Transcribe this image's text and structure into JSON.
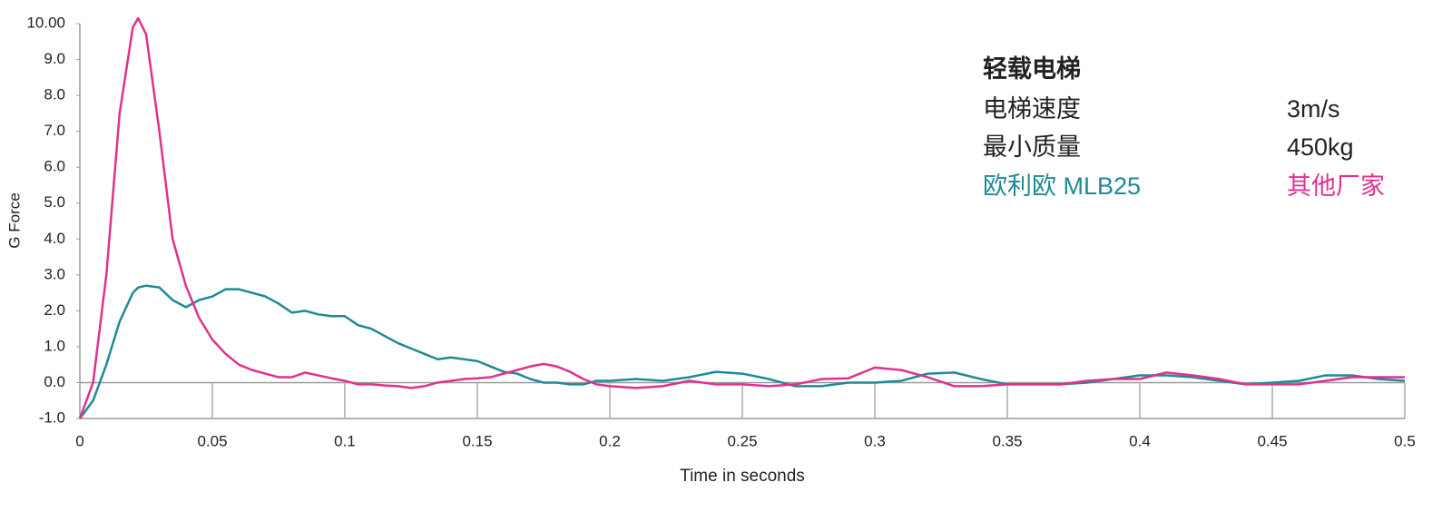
{
  "chart_data": {
    "type": "line",
    "xlabel": "Time in seconds",
    "ylabel": "G Force",
    "xlim": [
      0,
      0.5
    ],
    "xticks": [
      0,
      0.05,
      0.1,
      0.15,
      0.2,
      0.25,
      0.3,
      0.35,
      0.4,
      0.45,
      0.5
    ],
    "ylim": [
      -1,
      10
    ],
    "yticks": [
      {
        "value": -1,
        "label": "-1.0"
      },
      {
        "value": 0,
        "label": "0.0"
      },
      {
        "value": 1,
        "label": "1.0"
      },
      {
        "value": 2,
        "label": "2.0"
      },
      {
        "value": 3,
        "label": "3.0"
      },
      {
        "value": 4,
        "label": "4.0"
      },
      {
        "value": 5,
        "label": "5.0"
      },
      {
        "value": 6,
        "label": "6.0"
      },
      {
        "value": 7,
        "label": "7.0"
      },
      {
        "value": 8,
        "label": "8.0"
      },
      {
        "value": 9,
        "label": "9.0"
      },
      {
        "value": 10,
        "label": "10.00"
      }
    ],
    "annotations": {
      "title": "轻载电梯",
      "rows": [
        [
          "电梯速度",
          "3m/s"
        ],
        [
          "最小质量",
          "450kg"
        ]
      ]
    },
    "x": [
      0,
      0.005,
      0.01,
      0.015,
      0.02,
      0.022,
      0.025,
      0.03,
      0.035,
      0.04,
      0.045,
      0.05,
      0.055,
      0.06,
      0.065,
      0.07,
      0.075,
      0.08,
      0.085,
      0.09,
      0.095,
      0.1,
      0.105,
      0.11,
      0.115,
      0.12,
      0.125,
      0.13,
      0.135,
      0.14,
      0.145,
      0.15,
      0.155,
      0.16,
      0.165,
      0.17,
      0.175,
      0.18,
      0.185,
      0.19,
      0.195,
      0.2,
      0.21,
      0.22,
      0.23,
      0.24,
      0.25,
      0.26,
      0.27,
      0.28,
      0.29,
      0.3,
      0.31,
      0.32,
      0.33,
      0.34,
      0.35,
      0.36,
      0.37,
      0.38,
      0.39,
      0.4,
      0.41,
      0.42,
      0.43,
      0.44,
      0.45,
      0.46,
      0.47,
      0.48,
      0.49,
      0.5
    ],
    "series": [
      {
        "name": "欧利欧 MLB25",
        "color": "#1f8a96",
        "values": [
          -1.0,
          -0.5,
          0.5,
          1.7,
          2.5,
          2.65,
          2.7,
          2.65,
          2.3,
          2.1,
          2.3,
          2.4,
          2.6,
          2.6,
          2.5,
          2.4,
          2.2,
          1.95,
          2.0,
          1.9,
          1.85,
          1.85,
          1.6,
          1.5,
          1.3,
          1.1,
          0.95,
          0.8,
          0.65,
          0.7,
          0.65,
          0.6,
          0.45,
          0.3,
          0.25,
          0.1,
          0.0,
          0.0,
          -0.05,
          -0.05,
          0.05,
          0.05,
          0.1,
          0.05,
          0.15,
          0.3,
          0.25,
          0.1,
          -0.1,
          -0.1,
          0.0,
          0.0,
          0.05,
          0.25,
          0.28,
          0.1,
          -0.05,
          -0.05,
          -0.05,
          0.0,
          0.1,
          0.2,
          0.2,
          0.15,
          0.05,
          -0.05,
          0.0,
          0.05,
          0.2,
          0.2,
          0.1,
          0.05
        ]
      },
      {
        "name": "其他厂家",
        "color": "#e0318f",
        "values": [
          -1.0,
          0.0,
          3.0,
          7.5,
          9.9,
          10.15,
          9.7,
          7.0,
          4.0,
          2.7,
          1.8,
          1.2,
          0.8,
          0.5,
          0.35,
          0.25,
          0.15,
          0.15,
          0.28,
          0.2,
          0.12,
          0.05,
          -0.05,
          -0.05,
          -0.08,
          -0.1,
          -0.15,
          -0.1,
          0.0,
          0.05,
          0.1,
          0.12,
          0.15,
          0.25,
          0.35,
          0.45,
          0.52,
          0.45,
          0.3,
          0.1,
          -0.05,
          -0.1,
          -0.15,
          -0.1,
          0.05,
          -0.05,
          -0.05,
          -0.1,
          -0.05,
          0.1,
          0.12,
          0.42,
          0.35,
          0.15,
          -0.1,
          -0.1,
          -0.05,
          -0.05,
          -0.05,
          0.05,
          0.1,
          0.1,
          0.28,
          0.2,
          0.1,
          -0.05,
          -0.05,
          -0.05,
          0.05,
          0.15,
          0.15,
          0.15
        ]
      }
    ]
  }
}
